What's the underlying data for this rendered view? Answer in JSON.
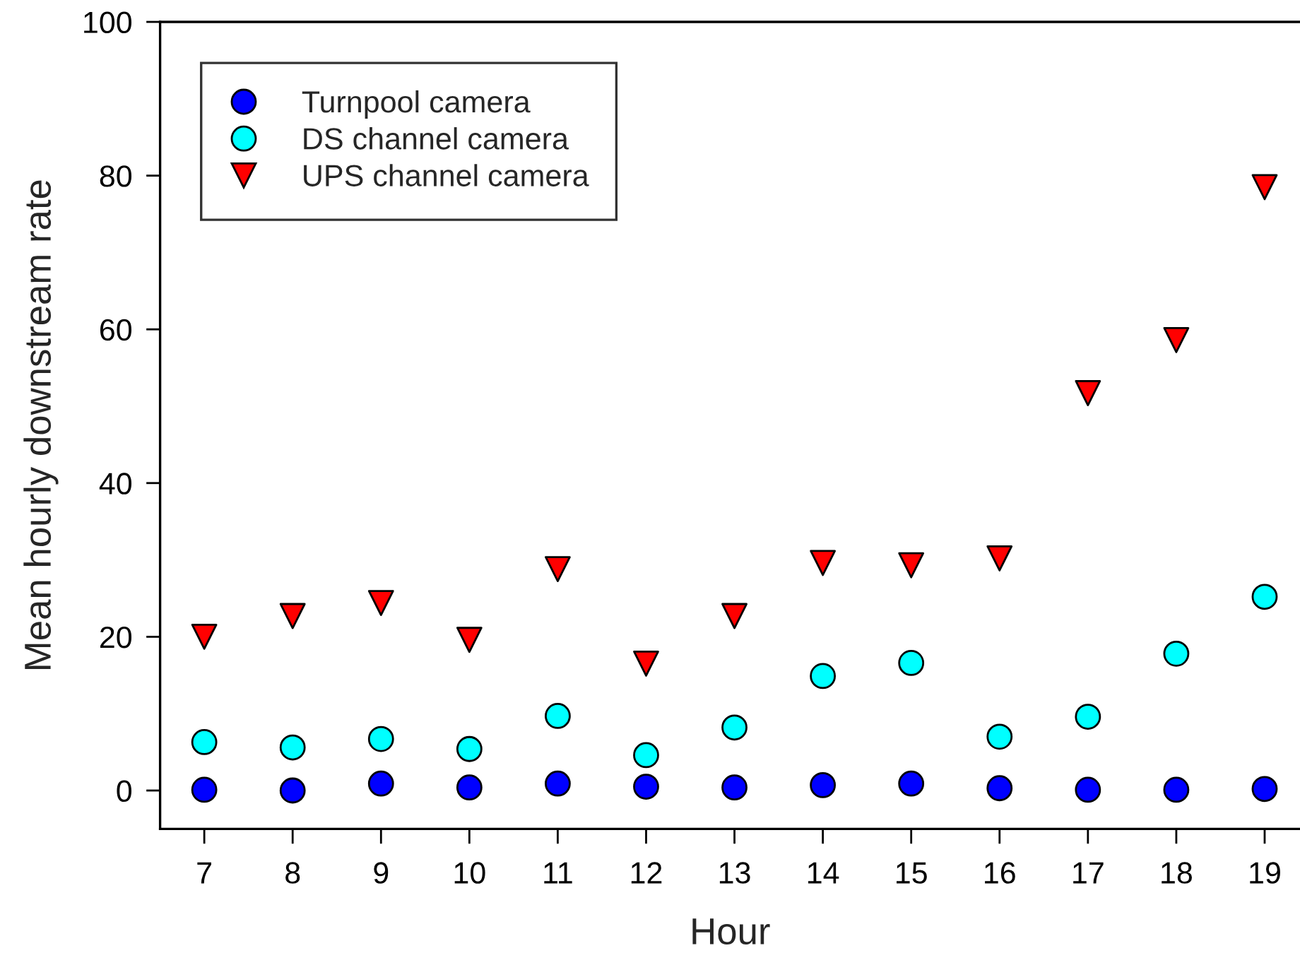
{
  "chart_data": {
    "type": "scatter",
    "xlabel": "Hour",
    "ylabel": "Mean hourly downstream rate",
    "x": [
      7,
      8,
      9,
      10,
      11,
      12,
      13,
      14,
      15,
      16,
      17,
      18,
      19
    ],
    "xlim": [
      6.5,
      19.4
    ],
    "xticks": [
      7,
      8,
      9,
      10,
      11,
      12,
      13,
      14,
      15,
      16,
      17,
      18,
      19
    ],
    "ylim": [
      -5,
      100
    ],
    "yticks": [
      0,
      20,
      40,
      60,
      80,
      100
    ],
    "legend": "top left",
    "series": [
      {
        "name": "Turnpool camera",
        "color": "#0000ff",
        "marker": "circle",
        "values": [
          0.1,
          0.0,
          0.9,
          0.4,
          0.9,
          0.5,
          0.4,
          0.7,
          0.9,
          0.3,
          0.1,
          0.1,
          0.2
        ]
      },
      {
        "name": "DS channel camera",
        "color": "#00ffff",
        "marker": "circle",
        "values": [
          6.3,
          5.6,
          6.7,
          5.4,
          9.7,
          4.6,
          8.2,
          14.9,
          16.6,
          7.0,
          9.6,
          17.8,
          25.2
        ]
      },
      {
        "name": "UPS channel camera",
        "color": "#ff0000",
        "marker": "triangle",
        "values": [
          20.0,
          22.7,
          24.4,
          19.6,
          28.8,
          16.5,
          22.7,
          29.6,
          29.3,
          30.2,
          51.7,
          58.6,
          78.5
        ]
      }
    ]
  }
}
